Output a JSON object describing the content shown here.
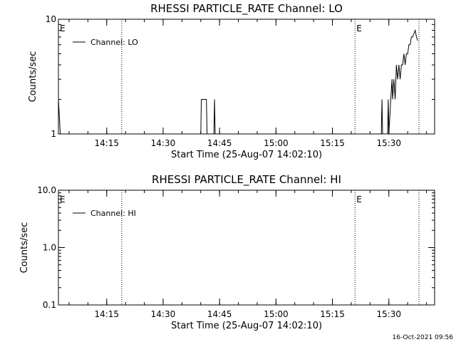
{
  "footer_timestamp": "16-Oct-2021 09:56",
  "time_window": {
    "start": "14:02:10",
    "end": "15:42:10"
  },
  "chart_data": [
    {
      "type": "line",
      "title": "RHESSI PARTICLE_RATE Channel: LO",
      "xlabel": "Start Time (25-Aug-07 14:02:10)",
      "ylabel": "Counts/sec",
      "yscale": "log",
      "ylim": [
        1,
        10
      ],
      "xlim": [
        "14:02:10",
        "15:42:10"
      ],
      "x_ticks": [
        "14:15",
        "14:30",
        "14:45",
        "15:00",
        "15:15",
        "15:30"
      ],
      "y_ticks": [
        {
          "value": 1,
          "label": "1"
        },
        {
          "value": 10,
          "label": "10"
        }
      ],
      "markers": [
        {
          "time": "14:02:10",
          "label": "E"
        },
        {
          "time": "14:19:00",
          "label": ""
        },
        {
          "time": "15:21:00",
          "label": "E"
        },
        {
          "time": "15:38:00",
          "label": ""
        }
      ],
      "grid": false,
      "legend": {
        "position": "top-left"
      },
      "series": [
        {
          "name": "Channel: LO",
          "points": [
            [
              "14:02:10",
              2
            ],
            [
              "14:02:40",
              1
            ],
            [
              "14:40:00",
              1
            ],
            [
              "14:40:10",
              2
            ],
            [
              "14:41:30",
              2
            ],
            [
              "14:41:40",
              1
            ],
            [
              "14:43:30",
              1
            ],
            [
              "14:43:40",
              2
            ],
            [
              "14:43:50",
              1
            ],
            [
              "15:28:00",
              1
            ],
            [
              "15:28:10",
              2
            ],
            [
              "15:28:20",
              1
            ],
            [
              "15:29:40",
              1
            ],
            [
              "15:29:50",
              2
            ],
            [
              "15:30:00",
              1
            ],
            [
              "15:30:30",
              2
            ],
            [
              "15:30:50",
              3
            ],
            [
              "15:31:00",
              2
            ],
            [
              "15:31:20",
              3
            ],
            [
              "15:31:40",
              2
            ],
            [
              "15:32:00",
              4
            ],
            [
              "15:32:20",
              3
            ],
            [
              "15:32:40",
              4
            ],
            [
              "15:33:00",
              3
            ],
            [
              "15:33:20",
              4
            ],
            [
              "15:33:40",
              4
            ],
            [
              "15:34:00",
              5
            ],
            [
              "15:34:20",
              4
            ],
            [
              "15:34:40",
              5
            ],
            [
              "15:35:00",
              5
            ],
            [
              "15:35:20",
              6
            ],
            [
              "15:35:40",
              6
            ],
            [
              "15:36:00",
              7
            ],
            [
              "15:36:20",
              7
            ],
            [
              "15:36:40",
              7.5
            ],
            [
              "15:37:00",
              8
            ],
            [
              "15:37:20",
              7
            ],
            [
              "15:37:40",
              6.5
            ]
          ]
        }
      ]
    },
    {
      "type": "line",
      "title": "RHESSI PARTICLE_RATE Channel: HI",
      "xlabel": "Start Time (25-Aug-07 14:02:10)",
      "ylabel": "Counts/sec",
      "yscale": "log",
      "ylim": [
        0.1,
        10
      ],
      "xlim": [
        "14:02:10",
        "15:42:10"
      ],
      "x_ticks": [
        "14:15",
        "14:30",
        "14:45",
        "15:00",
        "15:15",
        "15:30"
      ],
      "y_ticks": [
        {
          "value": 0.1,
          "label": "0.1"
        },
        {
          "value": 1,
          "label": "1.0"
        },
        {
          "value": 10,
          "label": "10.0"
        }
      ],
      "markers": [
        {
          "time": "14:02:10",
          "label": "E"
        },
        {
          "time": "14:19:00",
          "label": ""
        },
        {
          "time": "15:21:00",
          "label": "E"
        },
        {
          "time": "15:38:00",
          "label": ""
        }
      ],
      "grid": false,
      "legend": {
        "position": "top-left"
      },
      "series": [
        {
          "name": "Channel: HI",
          "points": []
        }
      ]
    }
  ]
}
